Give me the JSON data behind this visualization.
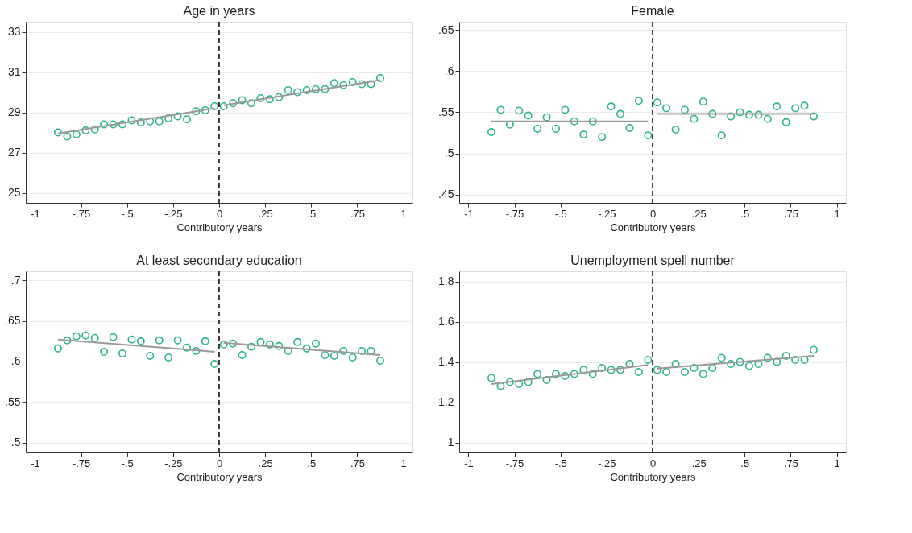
{
  "chart_data": [
    {
      "type": "scatter",
      "title": "Age in years",
      "xlabel": "Contributory years",
      "xlim": [
        -1.05,
        1.05
      ],
      "ylim": [
        24.5,
        33.5
      ],
      "xticks": [
        -1,
        {
          "value": -0.75,
          "label": "-.75"
        },
        {
          "value": -0.5,
          "label": "-.5"
        },
        {
          "value": -0.25,
          "label": "-.25"
        },
        0,
        {
          "value": 0.25,
          "label": ".25"
        },
        {
          "value": 0.5,
          "label": ".5"
        },
        {
          "value": 0.75,
          "label": ".75"
        },
        1
      ],
      "yticks": [
        25,
        27,
        29,
        31,
        33
      ],
      "grid": "y",
      "ref_lines": [
        {
          "axis": "x",
          "value": 0,
          "color": "#000000",
          "line_style": "dashed"
        }
      ],
      "series": [
        {
          "color": "#2cb386",
          "marker": "circle",
          "x": [
            -0.875,
            -0.825,
            -0.775,
            -0.725,
            -0.675,
            -0.625,
            -0.575,
            -0.525,
            -0.475,
            -0.425,
            -0.375,
            -0.325,
            -0.275,
            -0.225,
            -0.175,
            -0.125,
            -0.075,
            -0.025,
            0.025,
            0.075,
            0.125,
            0.175,
            0.225,
            0.275,
            0.325,
            0.375,
            0.425,
            0.475,
            0.525,
            0.575,
            0.625,
            0.675,
            0.725,
            0.775,
            0.825,
            0.875
          ],
          "values": [
            28.0,
            27.8,
            27.9,
            28.1,
            28.15,
            28.4,
            28.4,
            28.4,
            28.6,
            28.5,
            28.55,
            28.55,
            28.7,
            28.8,
            28.65,
            29.05,
            29.1,
            29.3,
            29.3,
            29.45,
            29.6,
            29.45,
            29.7,
            29.65,
            29.75,
            30.1,
            30.0,
            30.1,
            30.15,
            30.15,
            30.45,
            30.35,
            30.5,
            30.4,
            30.4,
            30.7
          ]
        },
        {
          "type": "line",
          "color": "#999999",
          "x": [
            -0.875,
            -0.025
          ],
          "values": [
            27.95,
            29.2
          ]
        },
        {
          "type": "line",
          "color": "#999999",
          "x": [
            0.025,
            0.875
          ],
          "values": [
            29.35,
            30.6
          ]
        }
      ]
    },
    {
      "type": "scatter",
      "title": "Female",
      "xlabel": "Contributory years",
      "xlim": [
        -1.05,
        1.05
      ],
      "ylim": [
        0.44,
        0.66
      ],
      "xticks": [
        -1,
        {
          "value": -0.75,
          "label": "-.75"
        },
        {
          "value": -0.5,
          "label": "-.5"
        },
        {
          "value": -0.25,
          "label": "-.25"
        },
        0,
        {
          "value": 0.25,
          "label": ".25"
        },
        {
          "value": 0.5,
          "label": ".5"
        },
        {
          "value": 0.75,
          "label": ".75"
        },
        1
      ],
      "yticks": [
        {
          "value": 0.45,
          "label": ".45"
        },
        {
          "value": 0.5,
          "label": ".5"
        },
        {
          "value": 0.55,
          "label": ".55"
        },
        {
          "value": 0.6,
          "label": ".6"
        },
        {
          "value": 0.65,
          "label": ".65"
        }
      ],
      "grid": "y",
      "ref_lines": [
        {
          "axis": "x",
          "value": 0,
          "color": "#000000",
          "line_style": "dashed"
        }
      ],
      "series": [
        {
          "color": "#2cb386",
          "marker": "circle",
          "x": [
            -0.875,
            -0.825,
            -0.775,
            -0.725,
            -0.675,
            -0.625,
            -0.575,
            -0.525,
            -0.475,
            -0.425,
            -0.375,
            -0.325,
            -0.275,
            -0.225,
            -0.175,
            -0.125,
            -0.075,
            -0.025,
            0.025,
            0.075,
            0.125,
            0.175,
            0.225,
            0.275,
            0.325,
            0.375,
            0.425,
            0.475,
            0.525,
            0.575,
            0.625,
            0.675,
            0.725,
            0.775,
            0.825,
            0.875
          ],
          "values": [
            0.526,
            0.553,
            0.535,
            0.552,
            0.546,
            0.53,
            0.544,
            0.53,
            0.553,
            0.539,
            0.523,
            0.539,
            0.52,
            0.557,
            0.548,
            0.531,
            0.564,
            0.522,
            0.562,
            0.555,
            0.529,
            0.553,
            0.542,
            0.563,
            0.548,
            0.522,
            0.545,
            0.55,
            0.547,
            0.547,
            0.542,
            0.557,
            0.538,
            0.555,
            0.558,
            0.545
          ]
        },
        {
          "type": "line",
          "color": "#999999",
          "x": [
            -0.875,
            -0.025
          ],
          "values": [
            0.539,
            0.539
          ]
        },
        {
          "type": "line",
          "color": "#999999",
          "x": [
            0.025,
            0.875
          ],
          "values": [
            0.548,
            0.548
          ]
        }
      ]
    },
    {
      "type": "scatter",
      "title": "At least secondary education",
      "xlabel": "Contributory years",
      "xlim": [
        -1.05,
        1.05
      ],
      "ylim": [
        0.488,
        0.711
      ],
      "xticks": [
        -1,
        {
          "value": -0.75,
          "label": "-.75"
        },
        {
          "value": -0.5,
          "label": "-.5"
        },
        {
          "value": -0.25,
          "label": "-.25"
        },
        0,
        {
          "value": 0.25,
          "label": ".25"
        },
        {
          "value": 0.5,
          "label": ".5"
        },
        {
          "value": 0.75,
          "label": ".75"
        },
        1
      ],
      "yticks": [
        {
          "value": 0.5,
          "label": ".5"
        },
        {
          "value": 0.55,
          "label": ".55"
        },
        {
          "value": 0.6,
          "label": ".6"
        },
        {
          "value": 0.65,
          "label": ".65"
        },
        {
          "value": 0.7,
          "label": ".7"
        }
      ],
      "grid": "y",
      "ref_lines": [
        {
          "axis": "x",
          "value": 0,
          "color": "#000000",
          "line_style": "dashed"
        }
      ],
      "series": [
        {
          "color": "#2cb386",
          "marker": "circle",
          "x": [
            -0.875,
            -0.825,
            -0.775,
            -0.725,
            -0.675,
            -0.625,
            -0.575,
            -0.525,
            -0.475,
            -0.425,
            -0.375,
            -0.325,
            -0.275,
            -0.225,
            -0.175,
            -0.125,
            -0.075,
            -0.025,
            0.025,
            0.075,
            0.125,
            0.175,
            0.225,
            0.275,
            0.325,
            0.375,
            0.425,
            0.475,
            0.525,
            0.575,
            0.625,
            0.675,
            0.725,
            0.775,
            0.825,
            0.875
          ],
          "values": [
            0.616,
            0.626,
            0.631,
            0.632,
            0.629,
            0.612,
            0.63,
            0.61,
            0.627,
            0.625,
            0.607,
            0.626,
            0.605,
            0.626,
            0.617,
            0.613,
            0.625,
            0.597,
            0.621,
            0.622,
            0.608,
            0.618,
            0.624,
            0.621,
            0.619,
            0.613,
            0.624,
            0.616,
            0.622,
            0.608,
            0.607,
            0.613,
            0.605,
            0.613,
            0.613,
            0.601
          ]
        },
        {
          "type": "line",
          "color": "#999999",
          "x": [
            -0.875,
            -0.025
          ],
          "values": [
            0.627,
            0.612
          ]
        },
        {
          "type": "line",
          "color": "#999999",
          "x": [
            0.025,
            0.875
          ],
          "values": [
            0.623,
            0.608
          ]
        }
      ]
    },
    {
      "type": "scatter",
      "title": "Unemployment spell number",
      "xlabel": "Contributory years",
      "xlim": [
        -1.05,
        1.05
      ],
      "ylim": [
        0.95,
        1.85
      ],
      "xticks": [
        -1,
        {
          "value": -0.75,
          "label": "-.75"
        },
        {
          "value": -0.5,
          "label": "-.5"
        },
        {
          "value": -0.25,
          "label": "-.25"
        },
        0,
        {
          "value": 0.25,
          "label": ".25"
        },
        {
          "value": 0.5,
          "label": ".5"
        },
        {
          "value": 0.75,
          "label": ".75"
        },
        1
      ],
      "yticks": [
        1,
        1.2,
        1.4,
        1.6,
        1.8
      ],
      "grid": "y",
      "ref_lines": [
        {
          "axis": "x",
          "value": 0,
          "color": "#000000",
          "line_style": "dashed"
        }
      ],
      "series": [
        {
          "color": "#2cb386",
          "marker": "circle",
          "x": [
            -0.875,
            -0.825,
            -0.775,
            -0.725,
            -0.675,
            -0.625,
            -0.575,
            -0.525,
            -0.475,
            -0.425,
            -0.375,
            -0.325,
            -0.275,
            -0.225,
            -0.175,
            -0.125,
            -0.075,
            -0.025,
            0.025,
            0.075,
            0.125,
            0.175,
            0.225,
            0.275,
            0.325,
            0.375,
            0.425,
            0.475,
            0.525,
            0.575,
            0.625,
            0.675,
            0.725,
            0.775,
            0.825,
            0.875
          ],
          "values": [
            1.32,
            1.28,
            1.3,
            1.29,
            1.3,
            1.34,
            1.31,
            1.34,
            1.33,
            1.34,
            1.36,
            1.34,
            1.37,
            1.36,
            1.36,
            1.39,
            1.35,
            1.41,
            1.36,
            1.35,
            1.39,
            1.35,
            1.37,
            1.34,
            1.37,
            1.42,
            1.39,
            1.4,
            1.38,
            1.39,
            1.42,
            1.4,
            1.43,
            1.41,
            1.41,
            1.46
          ]
        },
        {
          "type": "line",
          "color": "#999999",
          "x": [
            -0.875,
            -0.025
          ],
          "values": [
            1.29,
            1.385
          ]
        },
        {
          "type": "line",
          "color": "#999999",
          "x": [
            0.025,
            0.875
          ],
          "values": [
            1.367,
            1.43
          ]
        }
      ]
    }
  ]
}
